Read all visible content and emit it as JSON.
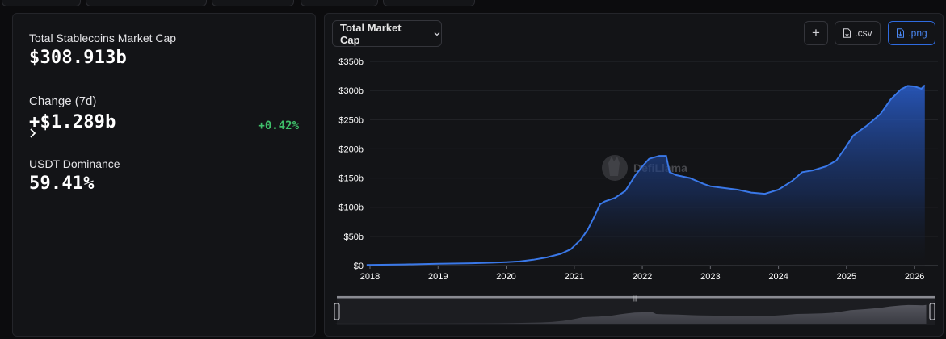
{
  "stats": {
    "total_label": "Total Stablecoins Market Cap",
    "total_value": "$308.913b",
    "change_label": "Change (7d)",
    "change_value": "+$1.289b",
    "change_pct": "+0.42%",
    "dominance_label": "USDT Dominance",
    "dominance_value": "59.41%"
  },
  "toolbar": {
    "dropdown_label": "Total Market Cap",
    "plus_label": "+",
    "csv_label": ".csv",
    "png_label": ".png"
  },
  "watermark": "DefiLlama",
  "colors": {
    "accent": "#2f6be0",
    "line": "#3a78e8",
    "positive": "#3fbf6a"
  },
  "chart_data": {
    "type": "area",
    "title": "",
    "xlabel": "",
    "ylabel": "",
    "xlim": [
      2018,
      2026.2
    ],
    "ylim": [
      0,
      350
    ],
    "x_ticks": [
      2018,
      2019,
      2020,
      2021,
      2022,
      2023,
      2024,
      2025,
      2026
    ],
    "x_tick_labels": [
      "2018",
      "2019",
      "2020",
      "2021",
      "2022",
      "2023",
      "2024",
      "2025",
      "2026"
    ],
    "y_ticks": [
      0,
      50,
      100,
      150,
      200,
      250,
      300,
      350
    ],
    "y_tick_labels": [
      "$0",
      "$50b",
      "$100b",
      "$150b",
      "$200b",
      "$250b",
      "$300b",
      "$350b"
    ],
    "grid": true,
    "legend": "none",
    "series": [
      {
        "x": [
          2017.95,
          2018.5,
          2019.0,
          2019.5,
          2019.8,
          2020.0,
          2020.2,
          2020.4,
          2020.6,
          2020.8,
          2020.95,
          2021.1,
          2021.2,
          2021.3,
          2021.38,
          2021.45,
          2021.6,
          2021.75,
          2021.9,
          2022.0,
          2022.1,
          2022.25,
          2022.35,
          2022.4,
          2022.5,
          2022.7,
          2022.9,
          2023.0,
          2023.2,
          2023.4,
          2023.6,
          2023.8,
          2024.0,
          2024.2,
          2024.35,
          2024.5,
          2024.7,
          2024.85,
          2025.0,
          2025.1,
          2025.3,
          2025.5,
          2025.65,
          2025.8,
          2025.9,
          2026.0,
          2026.1,
          2026.15
        ],
        "y": [
          1,
          2,
          3,
          4,
          5,
          6,
          7,
          10,
          14,
          20,
          28,
          45,
          62,
          85,
          105,
          110,
          116,
          128,
          155,
          170,
          183,
          188,
          188,
          160,
          155,
          150,
          140,
          136,
          133,
          130,
          125,
          123,
          130,
          145,
          160,
          163,
          170,
          180,
          205,
          223,
          240,
          260,
          285,
          302,
          308,
          307,
          303,
          309
        ]
      }
    ]
  }
}
